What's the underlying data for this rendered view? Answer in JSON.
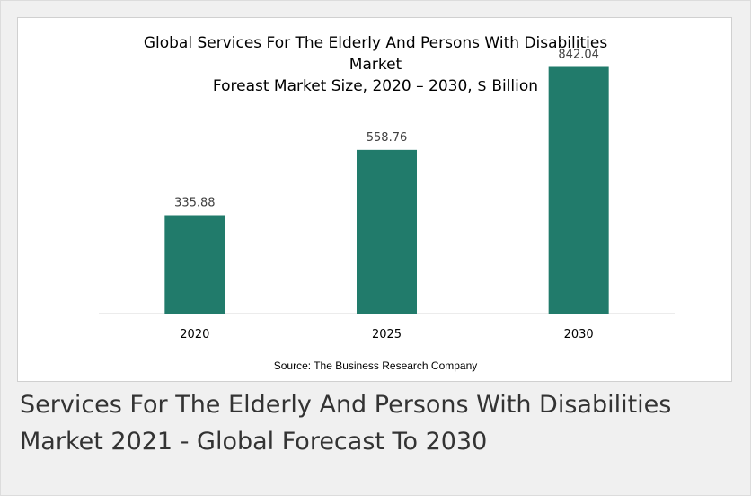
{
  "chart_data": {
    "type": "bar",
    "title_lines": [
      "Global Services For The Elderly And Persons With Disabilities",
      "Market",
      "Foreast Market Size, 2020 – 2030, $ Billion"
    ],
    "categories": [
      "2020",
      "2025",
      "2030"
    ],
    "values": [
      335.88,
      558.76,
      842.04
    ],
    "value_labels": [
      "335.88",
      "558.76",
      "842.04"
    ],
    "ylim": [
      0,
      1000
    ],
    "grid": false,
    "bar_color": "#217b6b",
    "source": "Source: The Business Research Company"
  },
  "caption": {
    "line1": "Services For The Elderly And Persons With Disabilities",
    "line2": "Market 2021 - Global Forecast To 2030"
  }
}
